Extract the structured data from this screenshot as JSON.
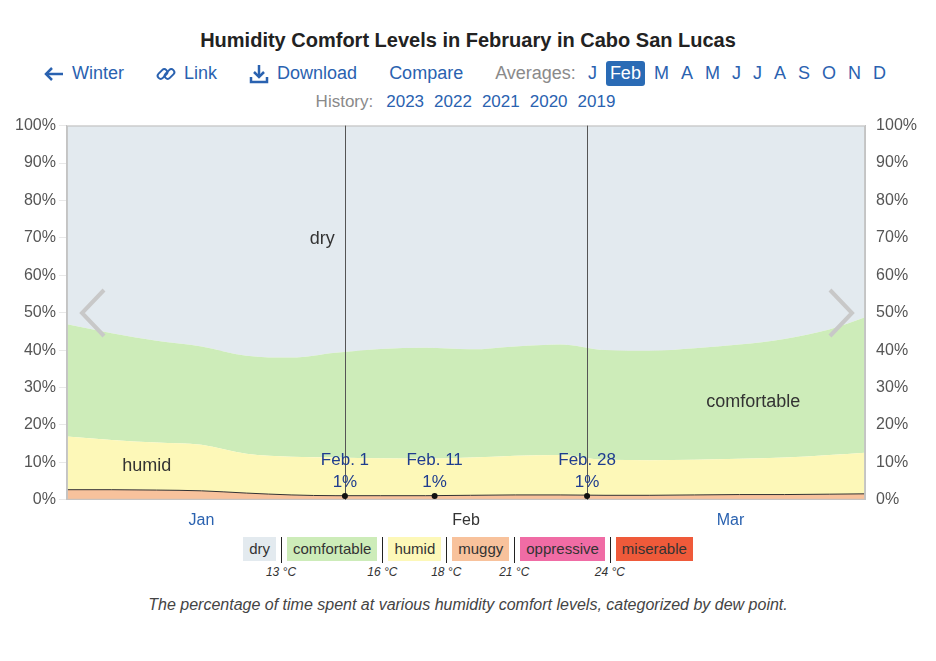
{
  "chart_data": {
    "type": "area",
    "title": "Humidity Comfort Levels in February in Cabo San Lucas",
    "caption": "The percentage of time spent at various humidity comfort levels, categorized by dew point.",
    "x": [
      0,
      5,
      10,
      15,
      20,
      25,
      30,
      35,
      40,
      45,
      50,
      55,
      60,
      65,
      70,
      75,
      80,
      85,
      89
    ],
    "series": [
      {
        "name": "dry",
        "color": "#e3eaef",
        "values": [
          53.1,
          55.5,
          57.5,
          59.0,
          61.5,
          62.0,
          60.7,
          59.7,
          59.4,
          59.8,
          59.0,
          58.5,
          60.0,
          60.2,
          59.5,
          58.5,
          57.0,
          54.5,
          51.2
        ]
      },
      {
        "name": "comfortable",
        "color": "#cdecb9",
        "values": [
          30.0,
          28.5,
          27.2,
          26.3,
          26.2,
          26.5,
          28.0,
          29.2,
          29.6,
          28.9,
          29.2,
          29.5,
          29.3,
          29.2,
          29.8,
          30.5,
          31.7,
          33.5,
          36.2
        ]
      },
      {
        "name": "humid",
        "color": "#fdf8b8",
        "values": [
          14.2,
          13.3,
          12.7,
          12.3,
          10.5,
          10.2,
          10.2,
          10.0,
          9.9,
          10.1,
          10.5,
          10.7,
          9.5,
          9.4,
          9.4,
          9.6,
          9.9,
          10.5,
          11.0
        ]
      },
      {
        "name": "muggy",
        "color": "#f8c29c",
        "values": [
          2.7,
          2.7,
          2.6,
          2.4,
          1.8,
          1.3,
          1.1,
          1.1,
          1.1,
          1.2,
          1.3,
          1.3,
          1.2,
          1.2,
          1.3,
          1.4,
          1.4,
          1.5,
          1.6
        ]
      },
      {
        "name": "oppressive",
        "color": "#f06ca5",
        "values": [
          0,
          0,
          0,
          0,
          0,
          0,
          0,
          0,
          0,
          0,
          0,
          0,
          0,
          0,
          0,
          0,
          0,
          0,
          0
        ]
      },
      {
        "name": "miserable",
        "color": "#ef5a3a",
        "values": [
          0,
          0,
          0,
          0,
          0,
          0,
          0,
          0,
          0,
          0,
          0,
          0,
          0,
          0,
          0,
          0,
          0,
          0,
          0
        ]
      }
    ],
    "stacked": true,
    "grid": true,
    "legend": "bottom",
    "xlim": [
      0,
      89
    ],
    "xticks": [
      {
        "value": 15,
        "label": "Jan"
      },
      {
        "value": 44.5,
        "label": "Feb"
      },
      {
        "value": 74,
        "label": "Mar"
      }
    ],
    "ylim": [
      0,
      100
    ],
    "yticks": [
      {
        "value": 0,
        "label": "0%"
      },
      {
        "value": 10,
        "label": "10%"
      },
      {
        "value": 20,
        "label": "20%"
      },
      {
        "value": 30,
        "label": "30%"
      },
      {
        "value": 40,
        "label": "40%"
      },
      {
        "value": 50,
        "label": "50%"
      },
      {
        "value": 60,
        "label": "60%"
      },
      {
        "value": 70,
        "label": "70%"
      },
      {
        "value": 80,
        "label": "80%"
      },
      {
        "value": 90,
        "label": "90%"
      },
      {
        "value": 100,
        "label": "100%"
      }
    ],
    "y2lim": [
      0,
      100
    ],
    "y2ticks": [
      {
        "value": 0,
        "label": "0%"
      },
      {
        "value": 10,
        "label": "10%"
      },
      {
        "value": 20,
        "label": "20%"
      },
      {
        "value": 30,
        "label": "30%"
      },
      {
        "value": 40,
        "label": "40%"
      },
      {
        "value": 50,
        "label": "50%"
      },
      {
        "value": 60,
        "label": "60%"
      },
      {
        "value": 70,
        "label": "70%"
      },
      {
        "value": 80,
        "label": "80%"
      },
      {
        "value": 90,
        "label": "90%"
      },
      {
        "value": 100,
        "label": "100%"
      }
    ],
    "area_labels": [
      "dry",
      "comfortable",
      "humid"
    ],
    "thresholds": [
      {
        "value": 13,
        "label": "13 °C"
      },
      {
        "value": 16,
        "label": "16 °C"
      },
      {
        "value": 18,
        "label": "18 °C"
      },
      {
        "value": 21,
        "label": "21 °C"
      },
      {
        "value": 24,
        "label": "24 °C"
      }
    ],
    "annotations": [
      {
        "text": "Feb. 1",
        "x": 31,
        "y": 1,
        "label": "1%"
      },
      {
        "text": "Feb. 11",
        "x": 41,
        "y": 1,
        "label": "1%"
      },
      {
        "text": "Feb. 28",
        "x": 58,
        "y": 1,
        "label": "1%"
      }
    ]
  },
  "page": {
    "nav": [
      "Winter",
      "Link",
      "Download",
      "Compare"
    ],
    "averages_label": "Averages:",
    "months": [
      "J",
      "Feb",
      "M",
      "A",
      "M",
      "J",
      "J",
      "A",
      "S",
      "O",
      "N",
      "D"
    ],
    "selected": "Feb",
    "history_label": "History:",
    "history": [
      "2023",
      "2022",
      "2021",
      "2020",
      "2019"
    ]
  }
}
